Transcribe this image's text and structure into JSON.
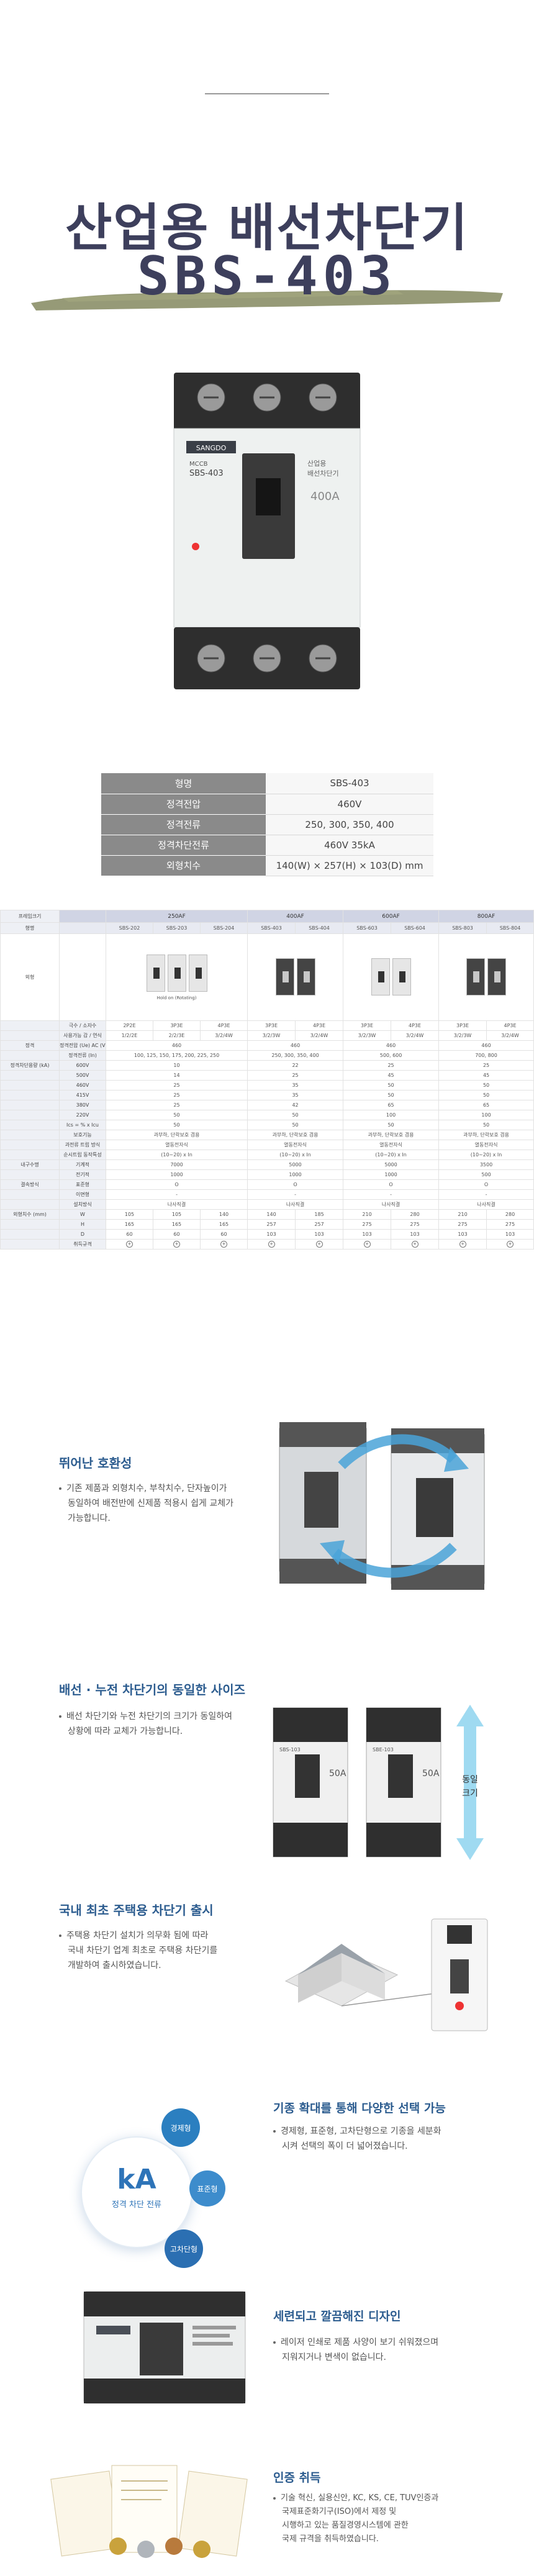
{
  "hero": {
    "title": "산업용 배선차단기",
    "model": "SBS-403"
  },
  "product": {
    "brand": "SANGDO",
    "model_top": "MCCB",
    "model_name": "SBS-403",
    "rating": "400A",
    "side_label": "산업용\n배선차단기"
  },
  "spec_table": [
    {
      "key": "형명",
      "value": "SBS-403"
    },
    {
      "key": "정격전압",
      "value": "460V"
    },
    {
      "key": "정격전류",
      "value": "250, 300, 350, 400"
    },
    {
      "key": "정격차단전류",
      "value": "460V 35kA"
    },
    {
      "key": "외형치수",
      "value": "140(W) × 257(H) × 103(D) mm"
    }
  ],
  "compare_table": {
    "frames": [
      "250AF",
      "400AF",
      "600AF",
      "800AF"
    ],
    "col_label": "프레임크기",
    "model_label": "형명",
    "models": [
      "SBS-202",
      "SBS-203",
      "SBS-204",
      "SBS-403",
      "SBS-404",
      "SBS-603",
      "SBS-604",
      "SBS-803",
      "SBS-804"
    ],
    "image_label": "외형",
    "image_caption": "Hold on (Rotating)",
    "rows": [
      {
        "label": "극수 / 소자수",
        "cells": [
          "2P2E",
          "3P3E",
          "4P3E",
          "3P3E",
          "4P3E",
          "3P3E",
          "4P3E",
          "3P3E",
          "4P3E"
        ]
      },
      {
        "label": "사용가능 감 / 연식",
        "cells": [
          "1/2/2E",
          "2/2/3E",
          "3/2/4W",
          "3/2/3W",
          "3/2/4W",
          "3/2/3W",
          "3/2/4W",
          "3/2/3W",
          "3/2/4W"
        ]
      },
      {
        "label": "정격전압 (Ue)  AC (V)",
        "cells": [
          "460",
          "",
          "",
          "460",
          "",
          "460",
          "",
          "460",
          ""
        ]
      },
      {
        "label": "정격전류 (In)",
        "cells": [
          "100, 125, 150, 175, 200, 225, 250",
          "",
          "",
          "250, 300, 350, 400",
          "",
          "500, 600",
          "",
          "700, 800",
          ""
        ]
      },
      {
        "label": "600V",
        "cells": [
          "10",
          "",
          "",
          "22",
          "",
          "25",
          "",
          "25",
          ""
        ]
      },
      {
        "label": "500V",
        "cells": [
          "14",
          "",
          "",
          "25",
          "",
          "45",
          "",
          "45",
          ""
        ]
      },
      {
        "label": "460V",
        "cells": [
          "25",
          "",
          "",
          "35",
          "",
          "50",
          "",
          "50",
          ""
        ]
      },
      {
        "label": "415V",
        "cells": [
          "25",
          "",
          "",
          "35",
          "",
          "50",
          "",
          "50",
          ""
        ]
      },
      {
        "label": "380V",
        "cells": [
          "25",
          "",
          "",
          "42",
          "",
          "65",
          "",
          "65",
          ""
        ]
      },
      {
        "label": "220V",
        "cells": [
          "50",
          "",
          "",
          "50",
          "",
          "100",
          "",
          "100",
          ""
        ]
      },
      {
        "label": "Ics = % x Icu",
        "cells": [
          "50",
          "",
          "",
          "50",
          "",
          "50",
          "",
          "50",
          ""
        ]
      },
      {
        "label": "보호기능",
        "cells": [
          "과부하, 단락보호 겸용",
          "",
          "",
          "과부하, 단락보호 겸용",
          "",
          "과부하, 단락보호 겸용",
          "",
          "과부하, 단락보호 겸용",
          ""
        ]
      },
      {
        "label": "과전류 트립 방식",
        "cells": [
          "열동전자식",
          "",
          "",
          "열동전자식",
          "",
          "열동전자식",
          "",
          "열동전자식",
          ""
        ]
      },
      {
        "label": "순시트립 동작특성",
        "cells": [
          "(10~20) x In",
          "",
          "",
          "(10~20) x In",
          "",
          "(10~20) x In",
          "",
          "(10~20) x In",
          ""
        ]
      },
      {
        "label": "기계적",
        "cells": [
          "7000",
          "",
          "",
          "5000",
          "",
          "5000",
          "",
          "3500",
          ""
        ]
      },
      {
        "label": "전기적",
        "cells": [
          "1000",
          "",
          "",
          "1000",
          "",
          "1000",
          "",
          "500",
          ""
        ]
      },
      {
        "label": "표준형",
        "cells": [
          "O",
          "",
          "",
          "O",
          "",
          "O",
          "",
          "O",
          ""
        ]
      },
      {
        "label": "이면형",
        "cells": [
          "-",
          "",
          "",
          "-",
          "",
          "-",
          "",
          "-",
          ""
        ]
      },
      {
        "label": "설치방식",
        "cells": [
          "나사직결",
          "",
          "",
          "나사직결",
          "",
          "나사직결",
          "",
          "나사직결",
          ""
        ]
      },
      {
        "label": "W",
        "cells": [
          "105",
          "105",
          "140",
          "140",
          "185",
          "210",
          "280",
          "210",
          "280"
        ]
      },
      {
        "label": "H",
        "cells": [
          "165",
          "165",
          "165",
          "257",
          "257",
          "275",
          "275",
          "275",
          "275"
        ]
      },
      {
        "label": "D",
        "cells": [
          "60",
          "60",
          "60",
          "103",
          "103",
          "103",
          "103",
          "103",
          "103"
        ]
      },
      {
        "label": "취득규격",
        "cells": [
          "⊕",
          "⊕",
          "⊕",
          "⊕",
          "⊕",
          "⊕",
          "⊕",
          "⊕",
          "⊕"
        ]
      }
    ],
    "group_labels": {
      "rating": "정격",
      "breaking": "정격차단용량 (kA)",
      "breaking_sub": "(대칭전류실효값)",
      "standard": "KS C 8321 (Sym)",
      "iec": "IEC 60947-2",
      "ac": "AC",
      "life": "내구수명",
      "accessory": "결속방식",
      "dims": "외형치수 (mm)"
    }
  },
  "features": [
    {
      "title": "뛰어난 호환성",
      "lines": [
        "기존 제품과 외형치수, 부착치수, 단자높이가",
        "동일하여 배전반에 신제품 적용시 쉽게 교체가",
        "가능합니다."
      ]
    },
    {
      "title": "배선 · 누전 차단기의 동일한 사이즈",
      "lines": [
        "배선 차단기와 누전 차단기의 크기가 동일하여",
        "상황에 따라 교체가 가능합니다."
      ],
      "arrow_label": "동일\n크기",
      "device_a": "SBS-103",
      "device_b": "SBE-103",
      "rating_a": "50A",
      "rating_b": "50A"
    },
    {
      "title": "국내 최초 주택용 차단기 출시",
      "lines": [
        "주택용 차단기 설치가 의무화 됨에 따라",
        "국내 차단기 업계 최초로 주택용 차단기를",
        "개발하여 출시하였습니다."
      ]
    },
    {
      "title": "기종 확대를 통해 다양한 선택 가능",
      "lines": [
        "경제형, 표준형, 고차단형으로 기종을 세분화",
        "시켜 선택의 폭이 더 넓어졌습니다."
      ],
      "bubble_main": "kA",
      "bubble_sub": "정격 차단 전류",
      "bubbles": [
        "경제형",
        "표준형",
        "고차단형"
      ]
    },
    {
      "title": "세련되고 깔끔해진 디자인",
      "lines": [
        "레이저 인쇄로 제품 사양이 보기 쉬워졌으며",
        "지워지거나 변색이 없습니다."
      ]
    },
    {
      "title": "인증 취득",
      "lines": [
        "기술 혁신, 실용신안, KC, KS, CE, TUV인증과",
        "국제표준화기구(ISO)에서 제정 및",
        "시행하고 있는 품질경영시스템에 관한",
        "국제 규격을 취득하였습니다."
      ]
    }
  ],
  "colors": {
    "title": "#3d3f5c",
    "brush": "#8b8f68",
    "accent": "#2c5c8f",
    "table_key": "#8a8a8a",
    "arrow": "#6fc3e6"
  }
}
